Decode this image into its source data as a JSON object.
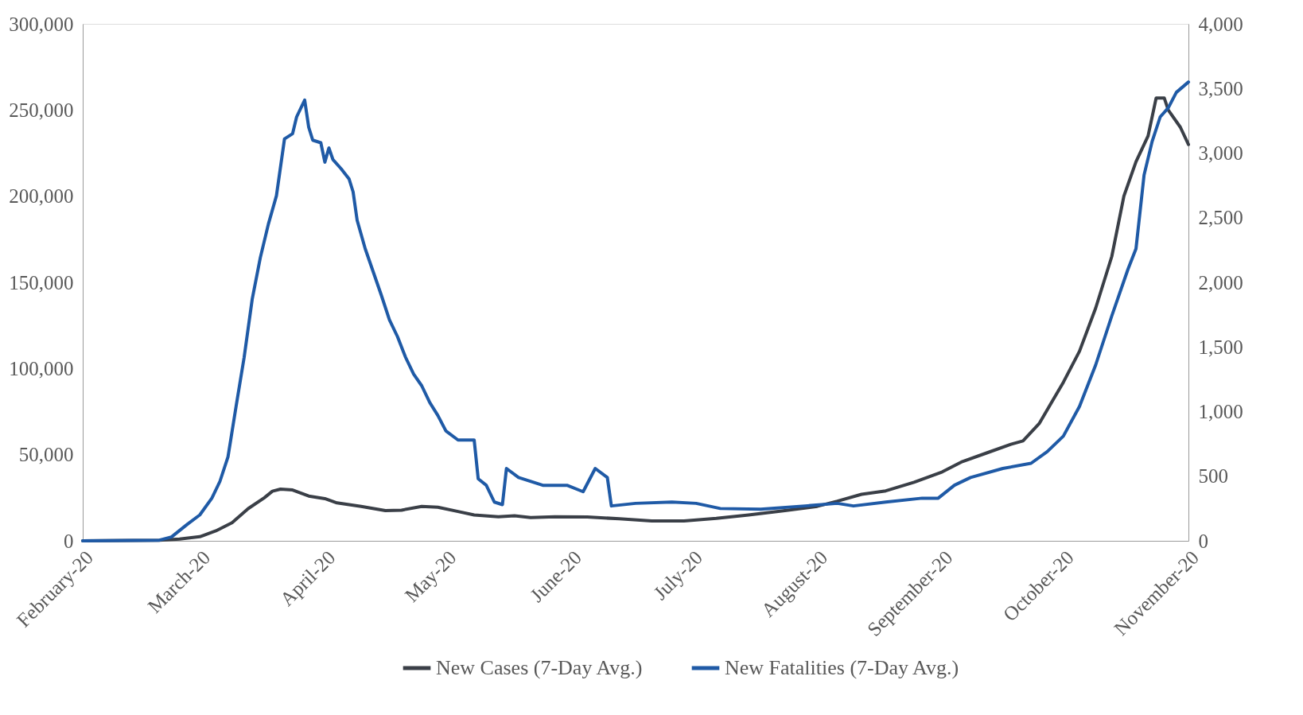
{
  "chart_data": {
    "type": "line",
    "xlim": [
      "2020-02-01",
      "2020-11-01"
    ],
    "xticks": [
      {
        "value": "2020-02-01",
        "label": "February-20"
      },
      {
        "value": "2020-03-01",
        "label": "March-20"
      },
      {
        "value": "2020-04-01",
        "label": "April-20"
      },
      {
        "value": "2020-05-01",
        "label": "May-20"
      },
      {
        "value": "2020-06-01",
        "label": "June-20"
      },
      {
        "value": "2020-07-01",
        "label": "July-20"
      },
      {
        "value": "2020-08-01",
        "label": "August-20"
      },
      {
        "value": "2020-09-01",
        "label": "September-20"
      },
      {
        "value": "2020-10-01",
        "label": "October-20"
      },
      {
        "value": "2020-11-01",
        "label": "November-20"
      }
    ],
    "ylim": [
      0,
      300000
    ],
    "yticks": [
      0,
      {
        "value": 50000,
        "label": "50,000"
      },
      {
        "value": 100000,
        "label": "100,000"
      },
      {
        "value": 150000,
        "label": "150,000"
      },
      {
        "value": 200000,
        "label": "200,000"
      },
      {
        "value": 250000,
        "label": "250,000"
      },
      {
        "value": 300000,
        "label": "300,000"
      }
    ],
    "y2lim": [
      0,
      4000
    ],
    "y2ticks": [
      0,
      500,
      {
        "value": 1000,
        "label": "1,000"
      },
      {
        "value": 1500,
        "label": "1,500"
      },
      {
        "value": 2000,
        "label": "2,000"
      },
      {
        "value": 2500,
        "label": "2,500"
      },
      {
        "value": 3000,
        "label": "3,000"
      },
      {
        "value": 3500,
        "label": "3,500"
      },
      {
        "value": 4000,
        "label": "4,000"
      }
    ],
    "grid": false,
    "legend": "bottom",
    "marker": "none",
    "line_style": "solid",
    "series": [
      {
        "name": "New Cases (7-Day Avg.)",
        "color": "#3a3f47",
        "x": [
          "2020-02-01",
          "2020-02-20",
          "2020-02-25",
          "2020-03-01",
          "2020-03-05",
          "2020-03-09",
          "2020-03-13",
          "2020-03-17",
          "2020-03-19",
          "2020-03-21",
          "2020-03-24",
          "2020-03-28",
          "2020-04-01",
          "2020-04-04",
          "2020-04-10",
          "2020-04-16",
          "2020-04-20",
          "2020-04-25",
          "2020-04-29",
          "2020-05-04",
          "2020-05-08",
          "2020-05-14",
          "2020-05-18",
          "2020-05-22",
          "2020-05-28",
          "2020-06-05",
          "2020-06-13",
          "2020-06-21",
          "2020-06-29",
          "2020-07-07",
          "2020-07-15",
          "2020-07-24",
          "2020-08-01",
          "2020-08-06",
          "2020-08-12",
          "2020-08-18",
          "2020-08-25",
          "2020-09-01",
          "2020-09-06",
          "2020-09-12",
          "2020-09-18",
          "2020-09-21",
          "2020-09-25",
          "2020-09-29",
          "2020-10-01",
          "2020-10-05",
          "2020-10-09",
          "2020-10-13",
          "2020-10-16",
          "2020-10-19",
          "2020-10-22",
          "2020-10-24",
          "2020-10-26",
          "2020-10-27",
          "2020-10-30",
          "2020-11-01"
        ],
        "values": [
          0,
          300,
          1000,
          2400,
          5800,
          10500,
          18700,
          25000,
          28800,
          30000,
          29500,
          26000,
          24500,
          22000,
          20000,
          17500,
          17800,
          20000,
          19500,
          17000,
          15000,
          14000,
          14500,
          13500,
          14000,
          13800,
          12800,
          11500,
          11500,
          13000,
          15000,
          17500,
          20000,
          23000,
          27000,
          29000,
          34000,
          40000,
          46000,
          51000,
          56000,
          58000,
          68000,
          84000,
          92000,
          110000,
          135000,
          165000,
          200000,
          220000,
          235000,
          257000,
          257000,
          250000,
          240000,
          230000
        ]
      },
      {
        "name": "New Fatalities (7-Day Avg.)",
        "color": "#1f5aa6",
        "axis": "y2",
        "x": [
          "2020-02-01",
          "2020-02-20",
          "2020-02-23",
          "2020-02-27",
          "2020-03-01",
          "2020-03-04",
          "2020-03-06",
          "2020-03-08",
          "2020-03-10",
          "2020-03-12",
          "2020-03-14",
          "2020-03-16",
          "2020-03-18",
          "2020-03-20",
          "2020-03-22",
          "2020-03-24",
          "2020-03-25",
          "2020-03-27",
          "2020-03-28",
          "2020-03-29",
          "2020-03-31",
          "2020-04-01",
          "2020-04-02",
          "2020-04-03",
          "2020-04-05",
          "2020-04-07",
          "2020-04-08",
          "2020-04-09",
          "2020-04-11",
          "2020-04-13",
          "2020-04-15",
          "2020-04-17",
          "2020-04-19",
          "2020-04-21",
          "2020-04-23",
          "2020-04-25",
          "2020-04-27",
          "2020-04-29",
          "2020-05-01",
          "2020-05-04",
          "2020-05-08",
          "2020-05-09",
          "2020-05-11",
          "2020-05-13",
          "2020-05-15",
          "2020-05-16",
          "2020-05-19",
          "2020-05-25",
          "2020-05-31",
          "2020-06-04",
          "2020-06-07",
          "2020-06-10",
          "2020-06-11",
          "2020-06-17",
          "2020-06-26",
          "2020-07-02",
          "2020-07-08",
          "2020-07-18",
          "2020-07-29",
          "2020-08-06",
          "2020-08-10",
          "2020-08-18",
          "2020-08-27",
          "2020-08-31",
          "2020-09-04",
          "2020-09-08",
          "2020-09-16",
          "2020-09-23",
          "2020-09-27",
          "2020-10-01",
          "2020-10-05",
          "2020-10-09",
          "2020-10-13",
          "2020-10-17",
          "2020-10-19",
          "2020-10-21",
          "2020-10-23",
          "2020-10-25",
          "2020-10-27",
          "2020-10-29",
          "2020-11-01"
        ],
        "values": [
          0,
          5,
          30,
          130,
          200,
          330,
          460,
          650,
          1040,
          1420,
          1870,
          2190,
          2450,
          2670,
          3110,
          3150,
          3280,
          3410,
          3200,
          3100,
          3080,
          2930,
          3040,
          2950,
          2880,
          2800,
          2700,
          2480,
          2260,
          2080,
          1900,
          1710,
          1580,
          1420,
          1290,
          1200,
          1070,
          970,
          850,
          780,
          780,
          480,
          430,
          300,
          280,
          560,
          490,
          430,
          430,
          380,
          560,
          490,
          270,
          290,
          300,
          290,
          250,
          245,
          270,
          290,
          270,
          300,
          330,
          330,
          430,
          490,
          560,
          600,
          690,
          810,
          1040,
          1360,
          1740,
          2100,
          2260,
          2830,
          3090,
          3280,
          3350,
          3470,
          3550
        ]
      }
    ]
  }
}
